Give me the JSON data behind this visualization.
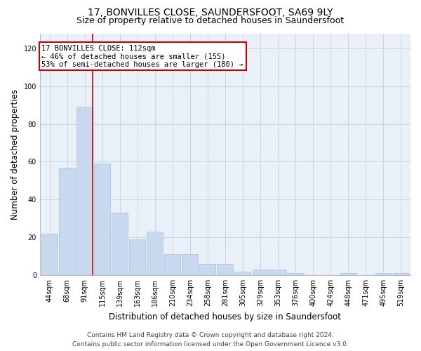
{
  "title": "17, BONVILLES CLOSE, SAUNDERSFOOT, SA69 9LY",
  "subtitle": "Size of property relative to detached houses in Saundersfoot",
  "xlabel": "Distribution of detached houses by size in Saundersfoot",
  "ylabel": "Number of detached properties",
  "categories": [
    "44sqm",
    "68sqm",
    "91sqm",
    "115sqm",
    "139sqm",
    "163sqm",
    "186sqm",
    "210sqm",
    "234sqm",
    "258sqm",
    "281sqm",
    "305sqm",
    "329sqm",
    "353sqm",
    "376sqm",
    "400sqm",
    "424sqm",
    "448sqm",
    "471sqm",
    "495sqm",
    "519sqm"
  ],
  "values": [
    22,
    57,
    89,
    59,
    33,
    19,
    23,
    11,
    11,
    6,
    6,
    2,
    3,
    3,
    1,
    0,
    0,
    1,
    0,
    1,
    1
  ],
  "bar_color": "#c8d8ee",
  "bar_edge_color": "#a8c0dc",
  "vline_color": "#cc0000",
  "annotation_text": "17 BONVILLES CLOSE: 112sqm\n← 46% of detached houses are smaller (155)\n53% of semi-detached houses are larger (180) →",
  "annotation_box_color": "white",
  "annotation_box_edge": "#cc0000",
  "annotation_fontsize": 7.5,
  "ylim": [
    0,
    128
  ],
  "yticks": [
    0,
    20,
    40,
    60,
    80,
    100,
    120
  ],
  "grid_color": "#c8d4e8",
  "bg_color": "#eaf0f8",
  "title_fontsize": 10,
  "subtitle_fontsize": 9,
  "xlabel_fontsize": 8.5,
  "ylabel_fontsize": 8.5,
  "tick_fontsize": 7,
  "footer": "Contains HM Land Registry data © Crown copyright and database right 2024.\nContains public sector information licensed under the Open Government Licence v3.0.",
  "footer_fontsize": 6.5
}
